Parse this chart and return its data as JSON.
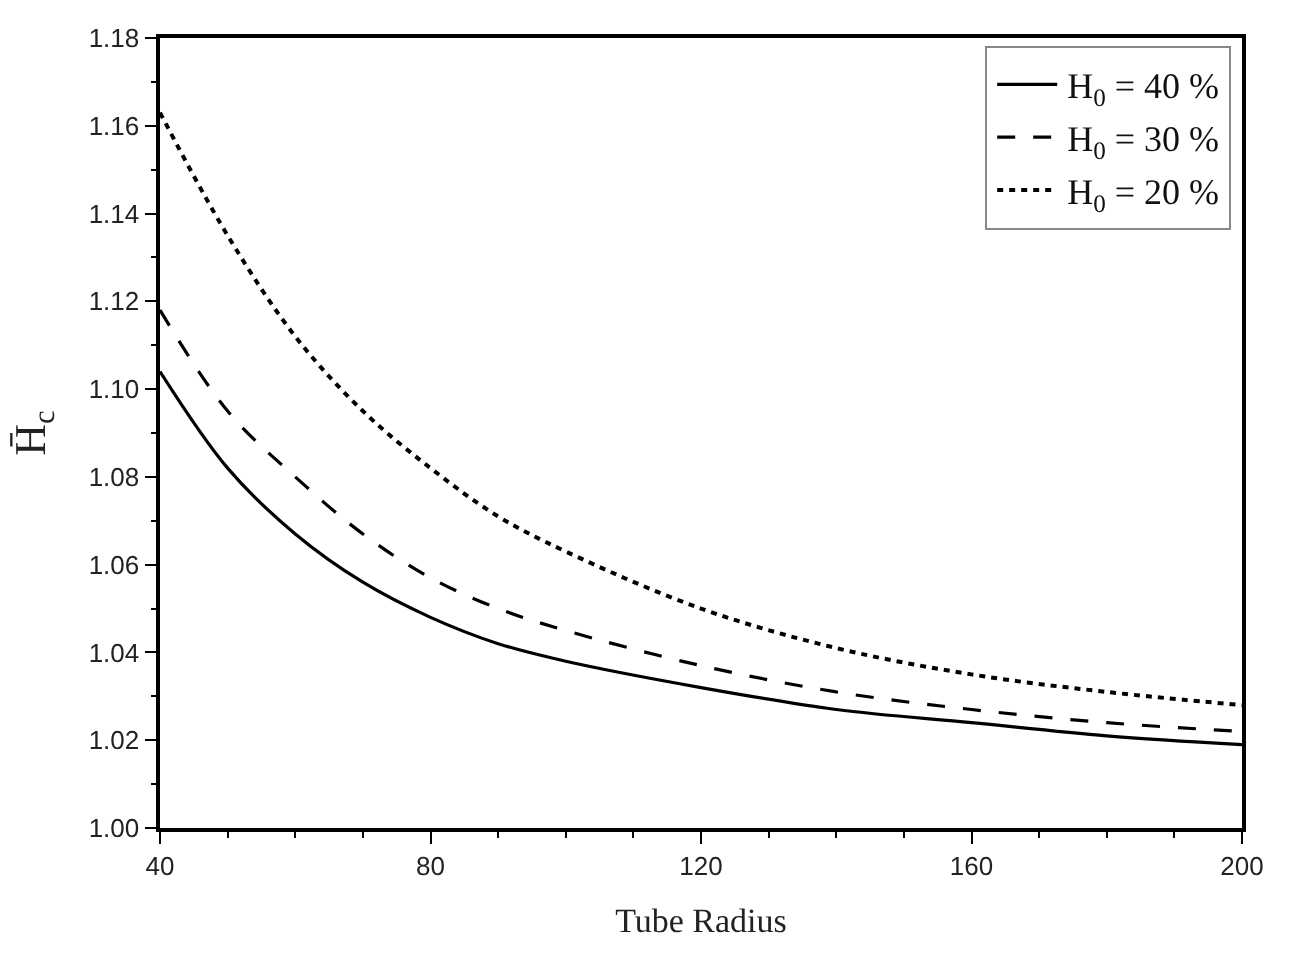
{
  "chart_data": {
    "type": "line",
    "xlabel": "Tube Radius",
    "ylabel": "H̄$_{c}$",
    "x": [
      40,
      50,
      60,
      70,
      80,
      90,
      100,
      120,
      140,
      160,
      180,
      200
    ],
    "series": [
      {
        "name": "H$_{0}$ = 40 %",
        "color": "#000000",
        "line_style": "solid",
        "values": [
          1.104,
          1.082,
          1.067,
          1.056,
          1.048,
          1.042,
          1.038,
          1.032,
          1.027,
          1.024,
          1.021,
          1.019
        ]
      },
      {
        "name": "H$_{0}$ = 30 %",
        "color": "#000000",
        "line_style": "dashed",
        "values": [
          1.118,
          1.095,
          1.08,
          1.067,
          1.057,
          1.05,
          1.045,
          1.037,
          1.031,
          1.027,
          1.024,
          1.022
        ]
      },
      {
        "name": "H$_{0}$ = 20 %",
        "color": "#000000",
        "line_style": "dotted",
        "values": [
          1.163,
          1.135,
          1.112,
          1.095,
          1.082,
          1.071,
          1.063,
          1.05,
          1.041,
          1.035,
          1.031,
          1.028
        ]
      }
    ],
    "xlim": [
      40,
      200
    ],
    "xticks": [
      40,
      80,
      120,
      160,
      200
    ],
    "ylim": [
      1.0,
      1.18
    ],
    "yticks": [
      {
        "value": 1.0,
        "label": "1.00"
      },
      {
        "value": 1.02,
        "label": "1.02"
      },
      {
        "value": 1.04,
        "label": "1.04"
      },
      {
        "value": 1.06,
        "label": "1.06"
      },
      {
        "value": 1.08,
        "label": "1.08"
      },
      {
        "value": 1.1,
        "label": "1.10"
      },
      {
        "value": 1.12,
        "label": "1.12"
      },
      {
        "value": 1.14,
        "label": "1.14"
      },
      {
        "value": 1.16,
        "label": "1.16"
      },
      {
        "value": 1.18,
        "label": "1.18"
      }
    ],
    "legend": "top right",
    "marker": "none"
  }
}
